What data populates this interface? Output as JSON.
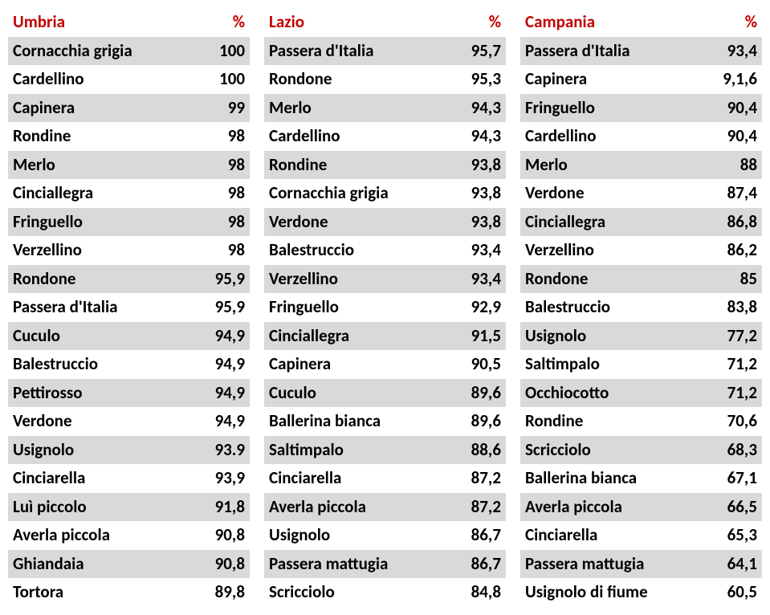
{
  "columns": [
    {
      "region": "Umbria",
      "header_color": "#c00000",
      "pct_label": "%",
      "rows": [
        {
          "name": "Cornacchia grigia",
          "val": "100"
        },
        {
          "name": "Cardellino",
          "val": "100"
        },
        {
          "name": "Capinera",
          "val": "99"
        },
        {
          "name": "Rondine",
          "val": "98"
        },
        {
          "name": "Merlo",
          "val": "98"
        },
        {
          "name": "Cinciallegra",
          "val": "98"
        },
        {
          "name": "Fringuello",
          "val": "98"
        },
        {
          "name": "Verzellino",
          "val": "98"
        },
        {
          "name": "Rondone",
          "val": "95,9"
        },
        {
          "name": "Passera d'Italia",
          "val": "95,9"
        },
        {
          "name": "Cuculo",
          "val": "94,9"
        },
        {
          "name": "Balestruccio",
          "val": "94,9"
        },
        {
          "name": "Pettirosso",
          "val": "94,9"
        },
        {
          "name": "Verdone",
          "val": "94,9"
        },
        {
          "name": "Usignolo",
          "val": "93.9"
        },
        {
          "name": "Cinciarella",
          "val": "93,9"
        },
        {
          "name": "Luì piccolo",
          "val": "91,8"
        },
        {
          "name": "Averla piccola",
          "val": "90,8"
        },
        {
          "name": "Ghiandaia",
          "val": "90,8"
        },
        {
          "name": "Tortora",
          "val": "89,8"
        }
      ]
    },
    {
      "region": "Lazio",
      "header_color": "#c00000",
      "pct_label": "%",
      "rows": [
        {
          "name": "Passera d'Italia",
          "val": "95,7"
        },
        {
          "name": "Rondone",
          "val": "95,3"
        },
        {
          "name": "Merlo",
          "val": "94,3"
        },
        {
          "name": "Cardellino",
          "val": "94,3"
        },
        {
          "name": "Rondine",
          "val": "93,8"
        },
        {
          "name": "Cornacchia grigia",
          "val": "93,8"
        },
        {
          "name": "Verdone",
          "val": "93,8"
        },
        {
          "name": "Balestruccio",
          "val": "93,4"
        },
        {
          "name": "Verzellino",
          "val": "93,4"
        },
        {
          "name": "Fringuello",
          "val": "92,9"
        },
        {
          "name": "Cinciallegra",
          "val": "91,5"
        },
        {
          "name": "Capinera",
          "val": "90,5"
        },
        {
          "name": "Cuculo",
          "val": "89,6"
        },
        {
          "name": "Ballerina bianca",
          "val": "89,6"
        },
        {
          "name": "Saltimpalo",
          "val": "88,6"
        },
        {
          "name": "Cinciarella",
          "val": "87,2"
        },
        {
          "name": "Averla piccola",
          "val": "87,2"
        },
        {
          "name": "Usignolo",
          "val": "86,7"
        },
        {
          "name": "Passera mattugia",
          "val": "86,7"
        },
        {
          "name": "Scricciolo",
          "val": "84,8"
        }
      ]
    },
    {
      "region": "Campania",
      "header_color": "#c00000",
      "pct_label": "%",
      "rows": [
        {
          "name": "Passera d'Italia",
          "val": "93,4"
        },
        {
          "name": "Capinera",
          "val": "9,1,6"
        },
        {
          "name": "Fringuello",
          "val": "90,4"
        },
        {
          "name": "Cardellino",
          "val": "90,4"
        },
        {
          "name": "Merlo",
          "val": "88"
        },
        {
          "name": "Verdone",
          "val": "87,4"
        },
        {
          "name": "Cinciallegra",
          "val": "86,8"
        },
        {
          "name": "Verzellino",
          "val": "86,2"
        },
        {
          "name": "Rondone",
          "val": "85"
        },
        {
          "name": "Balestruccio",
          "val": "83,8"
        },
        {
          "name": "Usignolo",
          "val": "77,2"
        },
        {
          "name": "Saltimpalo",
          "val": "71,2"
        },
        {
          "name": "Occhiocotto",
          "val": "71,2"
        },
        {
          "name": "Rondine",
          "val": "70,6"
        },
        {
          "name": "Scricciolo",
          "val": "68,3"
        },
        {
          "name": "Ballerina bianca",
          "val": "67,1"
        },
        {
          "name": "Averla piccola",
          "val": "66,5"
        },
        {
          "name": "Cinciarella",
          "val": "65,3"
        },
        {
          "name": "Passera mattugia",
          "val": "64,1"
        },
        {
          "name": "Usignolo di fiume",
          "val": "60,5"
        }
      ]
    }
  ],
  "stripe_color": "#d9d9d9",
  "body_text_color": "#000000"
}
